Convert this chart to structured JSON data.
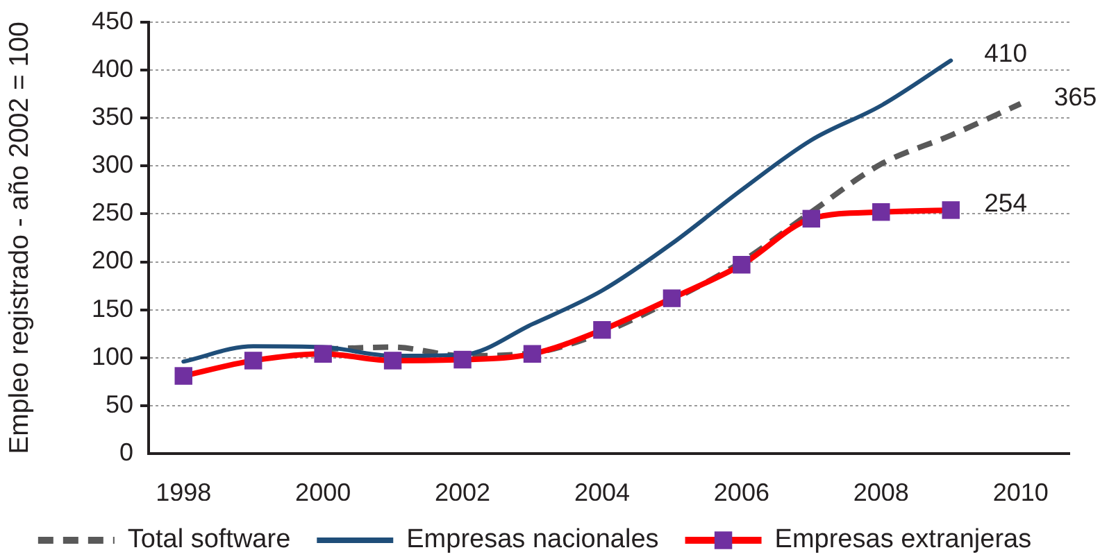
{
  "chart_data": {
    "type": "line",
    "ylabel": "Empleo registrado - año 2002 = 100",
    "x": [
      1998,
      1999,
      2000,
      2001,
      2002,
      2003,
      2004,
      2005,
      2006,
      2007,
      2008,
      2009,
      2010
    ],
    "xlim": [
      1997.5,
      2010.7
    ],
    "xticks": [
      1998,
      2000,
      2002,
      2004,
      2006,
      2008,
      2010
    ],
    "ylim": [
      0,
      450
    ],
    "yticks": [
      0,
      50,
      100,
      150,
      200,
      250,
      300,
      350,
      400,
      450
    ],
    "grid": "y",
    "legend": "bottom",
    "series": [
      {
        "name": "Total software",
        "color": "#595959",
        "line_style": "dashed",
        "values": [
          null,
          null,
          109,
          111,
          102,
          105,
          126,
          160,
          200,
          252,
          302,
          332,
          365
        ],
        "value_labels": [
          null,
          null,
          null,
          null,
          null,
          null,
          null,
          null,
          null,
          null,
          null,
          null,
          "365"
        ]
      },
      {
        "name": "Empresas nacionales",
        "color": "#1f4e79",
        "values": [
          96,
          112,
          111,
          102,
          103,
          135,
          170,
          219,
          275,
          327,
          363,
          410,
          null
        ],
        "value_labels": [
          null,
          null,
          null,
          null,
          null,
          null,
          null,
          null,
          null,
          null,
          null,
          "410",
          null
        ]
      },
      {
        "name": "Empresas extranjeras",
        "color": "#ff0000",
        "marker": "square",
        "colors": [
          "#7030a0",
          "#7030a0",
          "#7030a0",
          "#7030a0",
          "#7030a0",
          "#7030a0",
          "#7030a0",
          "#7030a0",
          "#7030a0",
          "#7030a0",
          "#7030a0",
          "#7030a0",
          "#7030a0"
        ],
        "values": [
          81,
          97,
          104,
          97,
          98,
          104,
          129,
          162,
          197,
          245,
          252,
          254,
          null
        ],
        "value_labels": [
          null,
          null,
          null,
          null,
          null,
          null,
          null,
          null,
          null,
          null,
          null,
          "254",
          null
        ]
      }
    ]
  }
}
